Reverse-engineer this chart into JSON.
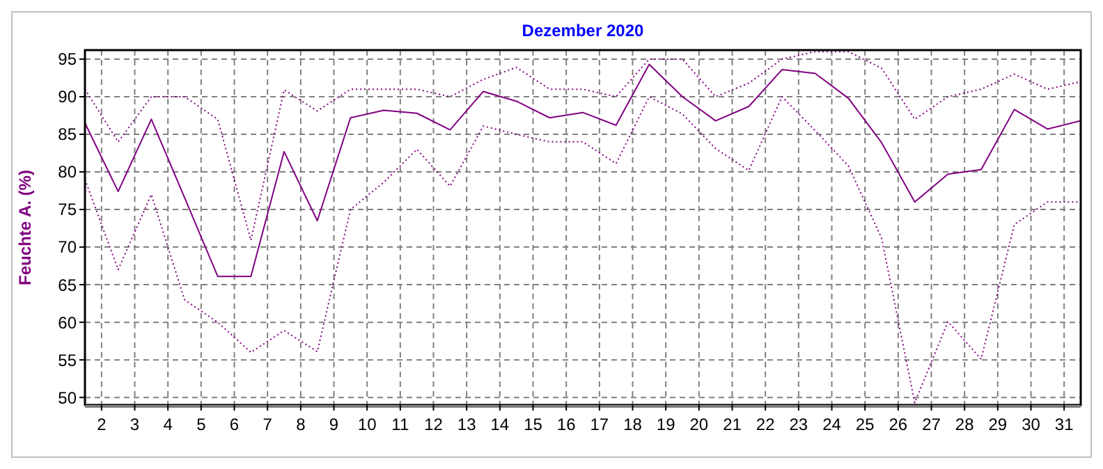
{
  "chart_data": {
    "type": "line",
    "title": "Dezember 2020",
    "ylabel": "Feuchte A. (%)",
    "x": [
      1.5,
      2.5,
      3.5,
      4.5,
      5.5,
      6.5,
      7.5,
      8.5,
      9.5,
      10.5,
      11.5,
      12.5,
      13.5,
      14.5,
      15.5,
      16.5,
      17.5,
      18.5,
      19.5,
      20.5,
      21.5,
      22.5,
      23.5,
      24.5,
      25.5,
      26.5,
      27.5,
      28.5,
      29.5,
      30.5,
      31.5
    ],
    "xlim": [
      1.5,
      31.5
    ],
    "xticks": [
      2,
      3,
      4,
      5,
      6,
      7,
      8,
      9,
      10,
      11,
      12,
      13,
      14,
      15,
      16,
      17,
      18,
      19,
      20,
      21,
      22,
      23,
      24,
      25,
      26,
      27,
      28,
      29,
      30,
      31
    ],
    "ylim": [
      49,
      96.2
    ],
    "yticks": [
      50,
      55,
      60,
      65,
      70,
      75,
      80,
      85,
      90,
      95
    ],
    "grid": true,
    "marker": "none",
    "series": [
      {
        "color": "#800080",
        "line_style": "dotted",
        "values": [
          91,
          84,
          90,
          90,
          87,
          70.9,
          90.9,
          88.1,
          91,
          91,
          91,
          90,
          92.3,
          93.9,
          91,
          91,
          90,
          95,
          95,
          90,
          91.8,
          95,
          96,
          96,
          93.8,
          87,
          90,
          91,
          93,
          91,
          92
        ]
      },
      {
        "color": "#800080",
        "line_style": "solid",
        "values": [
          86.5,
          77.4,
          87,
          76.6,
          66.1,
          66.1,
          82.7,
          73.5,
          87.2,
          88.2,
          87.8,
          85.6,
          90.7,
          89.4,
          87.2,
          87.9,
          86.2,
          94.3,
          90,
          86.8,
          88.7,
          93.6,
          93.1,
          89.8,
          83.9,
          76,
          79.7,
          80.3,
          88.3,
          85.7,
          86.8
        ]
      },
      {
        "color": "#800080",
        "line_style": "dotted",
        "values": [
          79,
          67,
          77,
          63,
          60,
          56,
          58.9,
          56.1,
          75,
          78.6,
          83,
          78.1,
          86.1,
          85,
          84,
          84,
          81.1,
          90,
          87.7,
          83.1,
          80.2,
          90,
          85.5,
          80.8,
          71.2,
          49.3,
          60.1,
          55.1,
          73,
          76,
          76
        ]
      }
    ]
  }
}
